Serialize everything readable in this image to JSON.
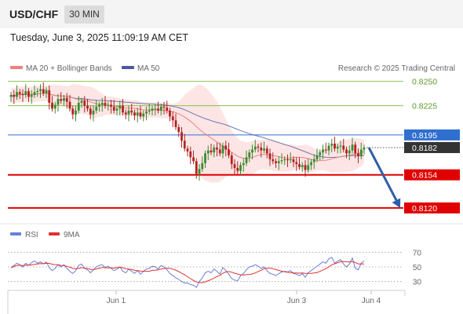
{
  "header": {
    "pair": "USD/CHF",
    "timeframe": "30 MIN",
    "timestamp": "Tuesday, June 3, 2025 11:09:19 AM CET"
  },
  "legend": {
    "ma20": "MA 20 + Bollinger Bands",
    "ma50": "MA 50",
    "credit": "Research © 2025 Trading Central"
  },
  "rsi_legend": {
    "rsi": "RSI",
    "ma": "9MA"
  },
  "colors": {
    "up": "#3a8a2e",
    "down": "#b22222",
    "ma20": "#f08080",
    "ma50": "#4a5aa0",
    "bands_fill": "#fde0e0",
    "resistance": "#8bc34a",
    "pivot": "#2f6fd0",
    "support": "#e00000",
    "current": "#333333",
    "arrow": "#2e5ea8",
    "rsi": "#6a7fd6",
    "rsi_ma": "#e03030"
  },
  "chart_data": {
    "type": "candlestick",
    "x_labels": [
      "Jun 1",
      "Jun 3",
      "Jun 4"
    ],
    "ylim": [
      0.8107,
      0.8261
    ],
    "levels": [
      {
        "label": "0.8250",
        "value": 0.825,
        "kind": "resistance"
      },
      {
        "label": "0.8225",
        "value": 0.8225,
        "kind": "resistance"
      },
      {
        "label": "0.8195",
        "value": 0.8195,
        "kind": "pivot"
      },
      {
        "label": "0.8182",
        "value": 0.8182,
        "kind": "current"
      },
      {
        "label": "0.8154",
        "value": 0.8154,
        "kind": "support"
      },
      {
        "label": "0.8120",
        "value": 0.812,
        "kind": "support"
      }
    ],
    "closes": [
      0.8236,
      0.8234,
      0.8239,
      0.8237,
      0.8236,
      0.824,
      0.8234,
      0.8236,
      0.8239,
      0.824,
      0.8242,
      0.8238,
      0.8241,
      0.8228,
      0.8222,
      0.8226,
      0.8232,
      0.823,
      0.8233,
      0.8229,
      0.8222,
      0.8216,
      0.822,
      0.8228,
      0.823,
      0.8225,
      0.8222,
      0.8216,
      0.822,
      0.8224,
      0.8226,
      0.8228,
      0.8225,
      0.8226,
      0.8224,
      0.822,
      0.8222,
      0.8225,
      0.8218,
      0.8216,
      0.822,
      0.8218,
      0.8215,
      0.8218,
      0.8214,
      0.8217,
      0.8219,
      0.822,
      0.8222,
      0.8222,
      0.822,
      0.8224,
      0.8223,
      0.822,
      0.8214,
      0.821,
      0.8203,
      0.8198,
      0.8189,
      0.8181,
      0.8178,
      0.8172,
      0.8168,
      0.8155,
      0.816,
      0.8166,
      0.8176,
      0.8179,
      0.8177,
      0.8182,
      0.818,
      0.8176,
      0.8184,
      0.818,
      0.8174,
      0.8165,
      0.8161,
      0.8158,
      0.8164,
      0.8166,
      0.8172,
      0.8177,
      0.818,
      0.8183,
      0.8182,
      0.8179,
      0.8181,
      0.8176,
      0.817,
      0.8168,
      0.8166,
      0.8168,
      0.8169,
      0.817,
      0.8169,
      0.817,
      0.8167,
      0.8165,
      0.8162,
      0.8164,
      0.8159,
      0.8164,
      0.8167,
      0.817,
      0.8174,
      0.8177,
      0.818,
      0.8179,
      0.8184,
      0.8186,
      0.8181,
      0.8183,
      0.8184,
      0.818,
      0.8176,
      0.8179,
      0.8185,
      0.8176,
      0.8173,
      0.818,
      0.8182
    ],
    "forecast": {
      "from": 0.8182,
      "to": 0.812
    },
    "rsi": {
      "ylim": [
        20,
        80
      ],
      "ticks": [
        70,
        50,
        30
      ],
      "values": [
        49,
        52,
        55,
        53,
        50,
        55,
        52,
        56,
        58,
        55,
        57,
        54,
        57,
        49,
        45,
        48,
        53,
        50,
        53,
        48,
        44,
        41,
        45,
        52,
        54,
        48,
        46,
        42,
        46,
        50,
        52,
        53,
        49,
        51,
        48,
        45,
        47,
        50,
        44,
        42,
        47,
        44,
        41,
        45,
        40,
        44,
        47,
        48,
        51,
        50,
        47,
        52,
        50,
        46,
        41,
        38,
        35,
        33,
        30,
        28,
        28,
        26,
        25,
        22,
        30,
        35,
        42,
        44,
        42,
        47,
        44,
        40,
        49,
        45,
        40,
        34,
        32,
        31,
        38,
        41,
        46,
        50,
        51,
        53,
        51,
        48,
        50,
        45,
        41,
        40,
        38,
        41,
        43,
        44,
        43,
        45,
        41,
        40,
        38,
        41,
        36,
        42,
        45,
        48,
        51,
        54,
        57,
        55,
        61,
        63,
        55,
        58,
        60,
        54,
        50,
        54,
        62,
        48,
        46,
        55,
        58
      ]
    }
  }
}
